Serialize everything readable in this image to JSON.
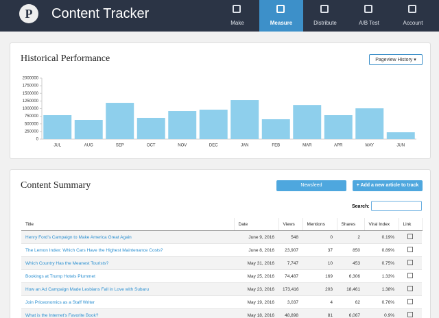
{
  "header": {
    "brand_initial": "P",
    "title": "Content Tracker",
    "nav": [
      "Make",
      "Measure",
      "Distribute",
      "A/B Test",
      "Account"
    ]
  },
  "chart_data": {
    "type": "bar",
    "title": "Historical Performance",
    "dropdown": "Pageview History",
    "categories": [
      "JUL",
      "AUG",
      "SEP",
      "OCT",
      "NOV",
      "DEC",
      "JAN",
      "FEB",
      "MAR",
      "APR",
      "MAY",
      "JUN"
    ],
    "values": [
      786000,
      629000,
      1190000,
      697000,
      921000,
      966000,
      1280000,
      652000,
      1120000,
      786000,
      1010000,
      225000
    ],
    "color": "#8ecfec",
    "ylim": [
      0,
      2000000
    ],
    "yticks": [
      0,
      250000,
      500000,
      750000,
      1000000,
      1250000,
      1500000,
      1750000,
      2000000
    ],
    "grid": false
  },
  "summary": {
    "title": "Content Summary",
    "newsfeed": "Newsfeed",
    "add": "+ Add a new article to track",
    "search_label": "Search:"
  },
  "table": {
    "columns": [
      "Title",
      "Date",
      "Views",
      "Mentions",
      "Shares",
      "Viral Index",
      "Link"
    ],
    "rows": [
      [
        "Henry Ford's Campaign to Make America Great Again",
        "June 9, 2016",
        "548",
        "0",
        "2",
        "0.19%"
      ],
      [
        "The Lemon Index: Which Cars Have the Highest Maintenance Costs?",
        "June 8, 2016",
        "23,907",
        "37",
        "850",
        "0.89%"
      ],
      [
        "Which Country Has the Meanest Tourists?",
        "May 31, 2016",
        "7,747",
        "10",
        "453",
        "0.75%"
      ],
      [
        "Bookings at Trump Hotels Plummet",
        "May 25, 2016",
        "74,487",
        "169",
        "6,306",
        "1.33%"
      ],
      [
        "How an Ad Campaign Made Lesbians Fall in Love with Subaru",
        "May 23, 2016",
        "173,416",
        "203",
        "18,461",
        "1.38%"
      ],
      [
        "Join Priceonomics as a Staff Writer",
        "May 19, 2016",
        "3,037",
        "4",
        "62",
        "0.76%"
      ],
      [
        "What is the Internet's Favorite Book?",
        "May 18, 2016",
        "48,898",
        "81",
        "6,067",
        "0.9%"
      ]
    ]
  }
}
